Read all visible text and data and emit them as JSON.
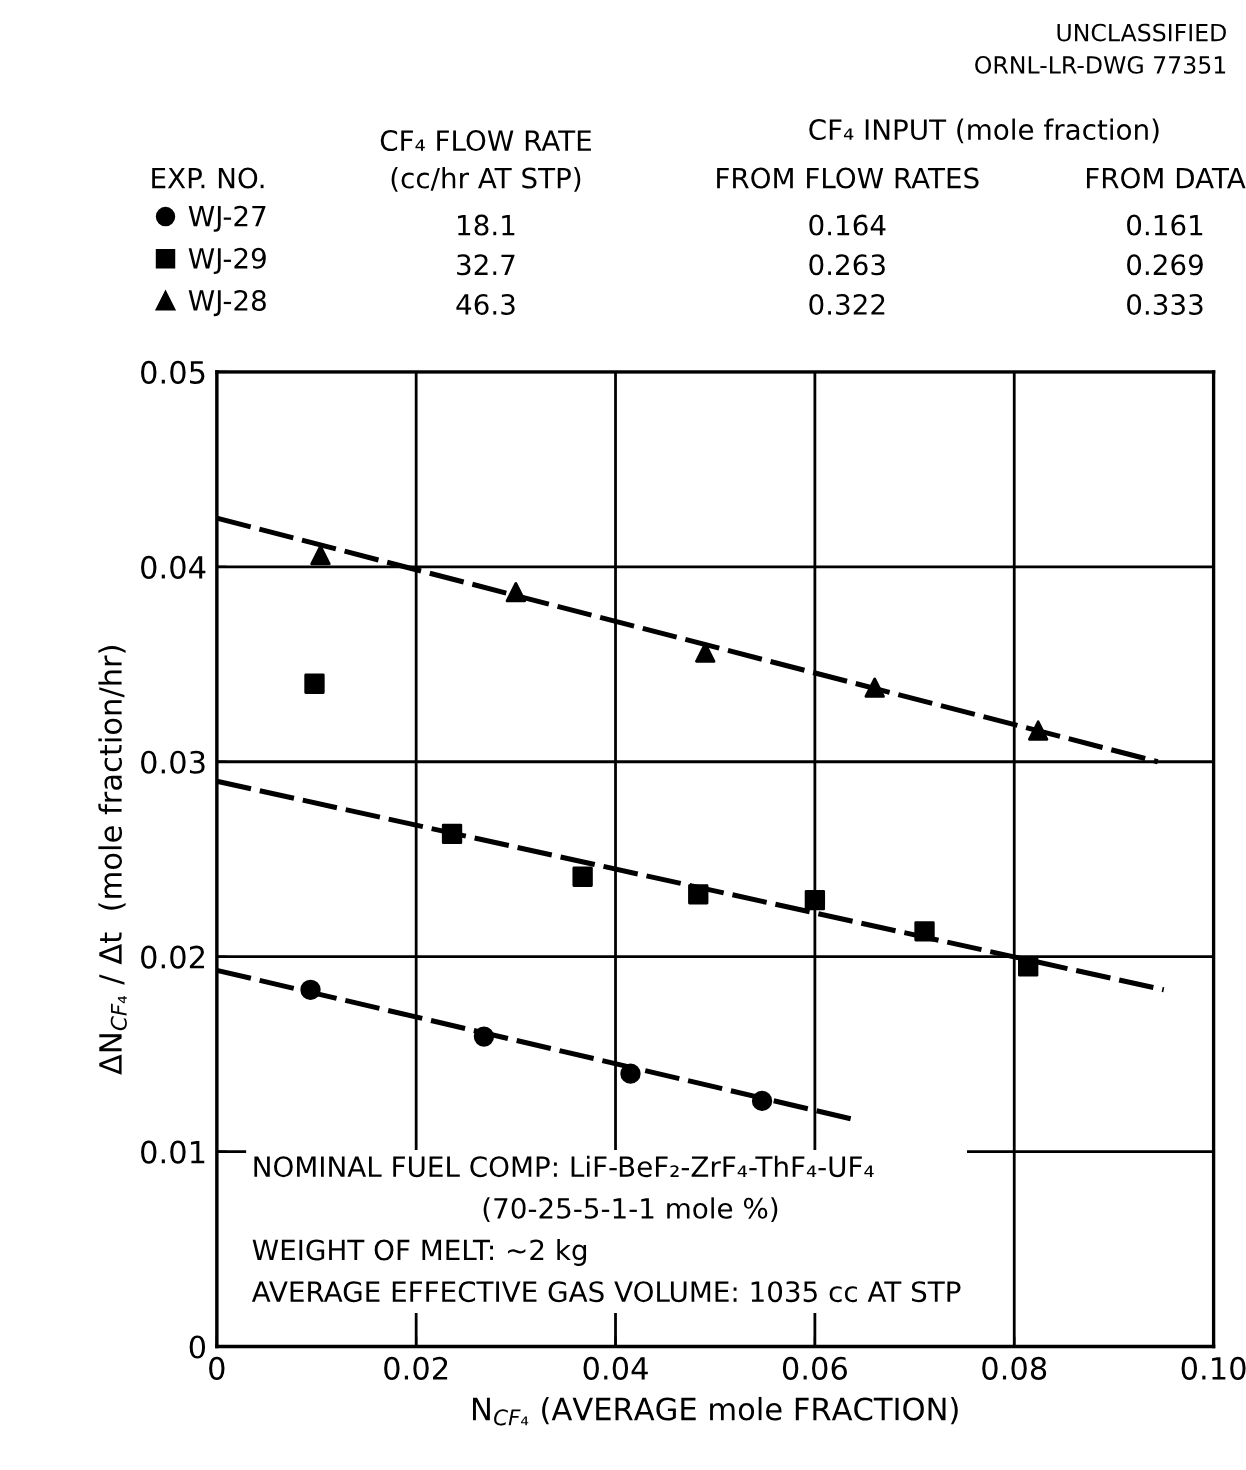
{
  "chart_data": {
    "type": "scatter",
    "xlabel": "N$_{CF₄}$ (AVERAGE mole FRACTION)",
    "ylabel": "ΔN$_{CF₄}$ / Δt  (mole fraction/hr)",
    "xlim": [
      0,
      0.1
    ],
    "ylim": [
      0,
      0.05
    ],
    "xticks": [
      0,
      0.02,
      0.04,
      0.06,
      0.08,
      {
        "value": 0.1,
        "label": "0.10"
      }
    ],
    "yticks": [
      0,
      0.01,
      0.02,
      0.03,
      0.04,
      0.05
    ],
    "grid": true,
    "legend": "top left",
    "series": [
      {
        "name": "WJ-27",
        "marker": "circle",
        "color": "#000000",
        "x": [
          0.0094,
          0.0268,
          0.0415,
          0.0547
        ],
        "values": [
          0.0183,
          0.0159,
          0.014,
          0.0126
        ]
      },
      {
        "name": "WJ-29",
        "marker": "square",
        "color": "#000000",
        "x": [
          0.0098,
          0.0236,
          0.0367,
          0.0483,
          0.06,
          0.071,
          0.0814
        ],
        "values": [
          0.034,
          0.0263,
          0.0241,
          0.0232,
          0.0229,
          0.0213,
          0.0195
        ]
      },
      {
        "name": "WJ-28",
        "marker": "triangle",
        "color": "#000000",
        "x": [
          0.0104,
          0.03,
          0.049,
          0.066,
          0.0824
        ],
        "values": [
          0.0406,
          0.0387,
          0.0356,
          0.0338,
          0.0316
        ]
      },
      {
        "type": "line",
        "marker": "none",
        "line_style": "dashed",
        "color": "#000000",
        "x": [
          0,
          0.0643
        ],
        "values": [
          0.0193,
          0.0116
        ]
      },
      {
        "type": "line",
        "marker": "none",
        "line_style": "dashed",
        "color": "#000000",
        "x": [
          0,
          0.095
        ],
        "values": [
          0.029,
          0.0183
        ]
      },
      {
        "type": "line",
        "marker": "none",
        "line_style": "dashed",
        "color": "#000000",
        "x": [
          0,
          0.0944
        ],
        "values": [
          0.0425,
          0.03
        ]
      }
    ],
    "annotations": [
      "UNCLASSIFIED",
      "ORNL-LR-DWG 77351",
      "EXP. NO.",
      "CF₄ FLOW RATE\n(cc/hr AT STP)",
      "CF₄ INPUT (mole fraction)",
      "FROM FLOW RATES",
      "FROM DATA",
      "18.1",
      "32.7",
      "46.3",
      "0.164",
      "0.263",
      "0.322",
      "0.161",
      "0.269",
      "0.333",
      "NOMINAL FUEL COMP: LiF-BeF₂-ZrF₄-ThF₄-UF₄\n                          (70-25-5-1-1 mole %)\nWEIGHT OF MELT: ~2 kg\nAVERAGE EFFECTIVE GAS VOLUME: 1035 cc AT STP"
    ]
  }
}
